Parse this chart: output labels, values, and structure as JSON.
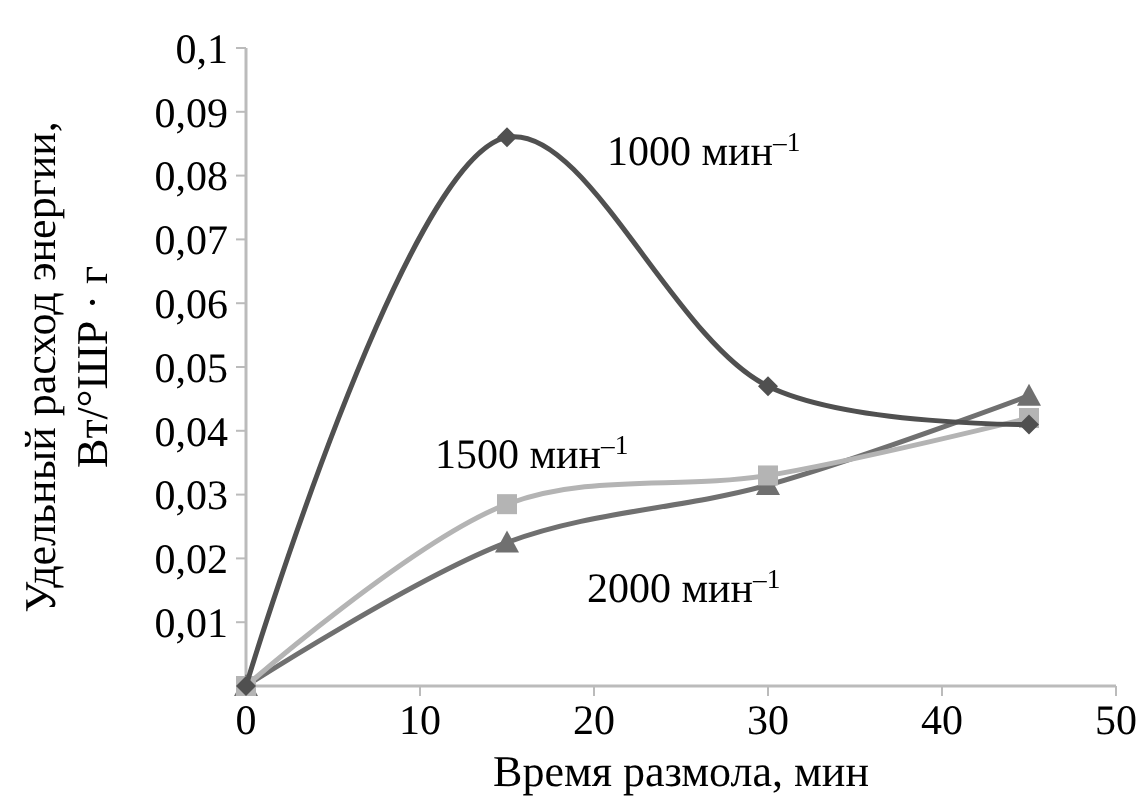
{
  "chart_data": {
    "type": "line",
    "xlabel": "Время размола, мин",
    "ylabel": "Удельный расход энергии,\nВт/°ШР · г",
    "x": [
      0,
      15,
      30,
      45
    ],
    "series": [
      {
        "name": "1000 мин$^{–1}$",
        "color": "#505050",
        "marker": "diamond",
        "values": [
          0.0,
          0.086,
          0.047,
          0.041
        ]
      },
      {
        "name": "1500 мин$^{–1}$",
        "color": "#b4b4b4",
        "marker": "square",
        "values": [
          0.0,
          0.0285,
          0.033,
          0.042
        ]
      },
      {
        "name": "2000 мин$^{–1}$",
        "color": "#707070",
        "marker": "triangle",
        "values": [
          0.0,
          0.0225,
          0.0315,
          0.0455
        ]
      }
    ],
    "xlim": [
      0,
      50
    ],
    "xticks": [
      0,
      10,
      20,
      30,
      40,
      50
    ],
    "ylim": [
      0,
      0.1
    ],
    "yticks": [
      {
        "value": 0,
        "label": null
      },
      {
        "value": 0.01,
        "label": "0,01"
      },
      {
        "value": 0.02,
        "label": "0,02"
      },
      {
        "value": 0.03,
        "label": "0,03"
      },
      {
        "value": 0.04,
        "label": "0,04"
      },
      {
        "value": 0.05,
        "label": "0,05"
      },
      {
        "value": 0.06,
        "label": "0,06"
      },
      {
        "value": 0.07,
        "label": "0,07"
      },
      {
        "value": 0.08,
        "label": "0,08"
      },
      {
        "value": 0.09,
        "label": "0,09"
      },
      {
        "value": 0.1,
        "label": "0,1"
      }
    ],
    "grid": false,
    "legend": false
  }
}
